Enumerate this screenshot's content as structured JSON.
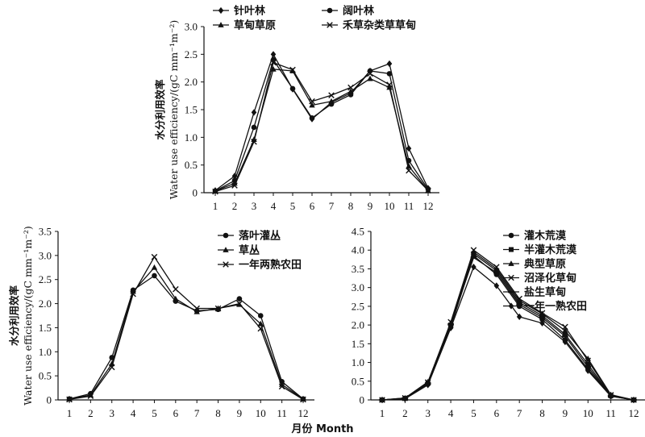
{
  "x_label": "月份 Month",
  "chart_data": [
    {
      "type": "line",
      "ylabel_cn": "水分利用效率",
      "ylabel_en": "Water use efficiency/(gC mm⁻¹m⁻²)",
      "x": [
        1,
        2,
        3,
        4,
        5,
        6,
        7,
        8,
        9,
        10,
        11,
        12
      ],
      "ylim": [
        0,
        3.0
      ],
      "yticks": [
        "0",
        "0.5",
        "1.0",
        "1.5",
        "2.0",
        "2.5",
        "3.0"
      ],
      "legend_placement": "top",
      "series": [
        {
          "name": "针叶林",
          "marker": "diamond",
          "values": [
            0.04,
            0.3,
            1.45,
            2.5,
            1.87,
            1.33,
            1.63,
            1.8,
            2.2,
            2.33,
            0.8,
            0.08
          ]
        },
        {
          "name": "阔叶林",
          "marker": "circle",
          "values": [
            0.03,
            0.22,
            1.18,
            2.4,
            1.88,
            1.35,
            1.6,
            1.77,
            2.2,
            2.15,
            0.58,
            0.06
          ]
        },
        {
          "name": "草甸草原",
          "marker": "triangle",
          "values": [
            0.03,
            0.17,
            0.96,
            2.23,
            2.2,
            1.58,
            1.65,
            1.83,
            2.06,
            1.9,
            0.48,
            0.04
          ]
        },
        {
          "name": "禾草杂类草草甸",
          "marker": "x",
          "values": [
            0.02,
            0.13,
            0.92,
            2.35,
            2.22,
            1.65,
            1.76,
            1.9,
            2.15,
            1.95,
            0.4,
            0.04
          ]
        }
      ]
    },
    {
      "type": "line",
      "ylabel_cn": "水分利用效率",
      "ylabel_en": "Water use efficiency/(gC mm⁻¹m⁻²)",
      "x": [
        1,
        2,
        3,
        4,
        5,
        6,
        7,
        8,
        9,
        10,
        11,
        12
      ],
      "ylim": [
        0,
        3.5
      ],
      "yticks": [
        "0",
        "0.5",
        "1.0",
        "1.5",
        "2.0",
        "2.5",
        "3.0",
        "3.5"
      ],
      "legend_placement": "top-right",
      "series": [
        {
          "name": "落叶灌丛",
          "marker": "circle",
          "values": [
            0.02,
            0.13,
            0.88,
            2.28,
            2.58,
            2.05,
            1.85,
            1.88,
            2.1,
            1.75,
            0.38,
            0.02
          ]
        },
        {
          "name": "草丛",
          "marker": "triangle",
          "values": [
            0.02,
            0.1,
            0.75,
            2.25,
            2.75,
            2.1,
            1.83,
            1.9,
            1.98,
            1.58,
            0.32,
            0.02
          ]
        },
        {
          "name": "一年两熟农田",
          "marker": "x",
          "values": [
            0.01,
            0.08,
            0.68,
            2.2,
            2.97,
            2.3,
            1.9,
            1.9,
            2.0,
            1.48,
            0.28,
            0.01
          ]
        }
      ]
    },
    {
      "type": "line",
      "x": [
        1,
        2,
        3,
        4,
        5,
        6,
        7,
        8,
        9,
        10,
        11,
        12
      ],
      "ylim": [
        0,
        4.5
      ],
      "yticks": [
        "0",
        "0.5",
        "1.0",
        "1.5",
        "2.0",
        "2.5",
        "3.0",
        "3.5",
        "4.0",
        "4.5"
      ],
      "legend_placement": "top-right",
      "series": [
        {
          "name": "灌木荒漠",
          "marker": "circle",
          "values": [
            0.0,
            0.04,
            0.42,
            1.95,
            3.85,
            3.35,
            2.5,
            2.15,
            1.6,
            0.82,
            0.1,
            0.0
          ]
        },
        {
          "name": "半灌木荒漠",
          "marker": "square",
          "values": [
            0.0,
            0.04,
            0.45,
            2.0,
            3.9,
            3.45,
            2.6,
            2.25,
            1.75,
            0.95,
            0.12,
            0.0
          ]
        },
        {
          "name": "典型草原",
          "marker": "triangle",
          "values": [
            0.0,
            0.05,
            0.48,
            2.05,
            3.95,
            3.5,
            2.65,
            2.3,
            1.85,
            1.1,
            0.14,
            0.0
          ]
        },
        {
          "name": "沼泽化草甸",
          "marker": "x",
          "values": [
            0.0,
            0.05,
            0.47,
            2.08,
            4.0,
            3.55,
            2.7,
            2.32,
            1.95,
            1.05,
            0.13,
            0.0
          ]
        },
        {
          "name": "盐生草甸",
          "marker": "dash",
          "values": [
            0.0,
            0.04,
            0.44,
            2.02,
            3.8,
            3.4,
            2.55,
            2.2,
            1.7,
            0.88,
            0.11,
            0.0
          ]
        },
        {
          "name": "一年一熟农田",
          "marker": "diamond",
          "values": [
            0.0,
            0.03,
            0.4,
            1.92,
            3.55,
            3.05,
            2.22,
            2.05,
            1.55,
            0.78,
            0.1,
            0.0
          ]
        }
      ]
    }
  ]
}
